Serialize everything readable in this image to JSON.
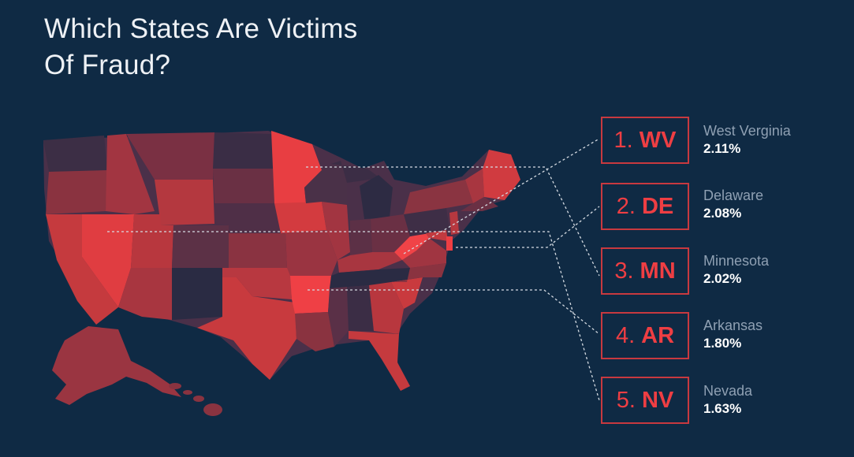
{
  "title": {
    "line1": "Which States Are Victims",
    "line2": "Of Fraud?"
  },
  "colors": {
    "background": "#0f2a44",
    "highlight": "#ee3e43",
    "box_border": "#c8393f",
    "state_name": "#8fa0b3",
    "percent": "#ffffff",
    "connector": "#d5dbe2"
  },
  "rankings": [
    {
      "rank": "1.",
      "abbr": "WV",
      "state": "West Verginia",
      "percent": "2.11%"
    },
    {
      "rank": "2.",
      "abbr": "DE",
      "state": "Delaware",
      "percent": "2.08%"
    },
    {
      "rank": "3.",
      "abbr": "MN",
      "state": "Minnesota",
      "percent": "2.02%"
    },
    {
      "rank": "4.",
      "abbr": "AR",
      "state": "Arkansas",
      "percent": "1.80%"
    },
    {
      "rank": "5.",
      "abbr": "NV",
      "state": "Nevada",
      "percent": "1.63%"
    }
  ]
}
